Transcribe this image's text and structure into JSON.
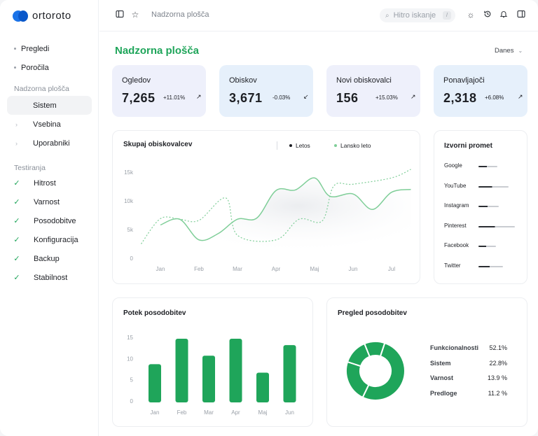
{
  "app": {
    "logo_text": "ortoroto"
  },
  "sidebar": {
    "top_items": [
      {
        "label": "Pregledi"
      },
      {
        "label": "Poročila"
      }
    ],
    "section1_title": "Nadzorna plošča",
    "section1_items": [
      {
        "label": "Sistem",
        "active": true
      },
      {
        "label": "Vsebina"
      },
      {
        "label": "Uporabniki"
      }
    ],
    "section2_title": "Testiranja",
    "section2_items": [
      {
        "label": "Hitrost"
      },
      {
        "label": "Varnost"
      },
      {
        "label": "Posodobitve"
      },
      {
        "label": "Konfiguracija"
      },
      {
        "label": "Backup"
      },
      {
        "label": "Stabilnost"
      }
    ]
  },
  "topbar": {
    "breadcrumb": "Nadzorna plošča",
    "search_placeholder": "Hitro iskanje",
    "search_shortcut": "/"
  },
  "main": {
    "title": "Nadzorna plošča",
    "period": "Danes"
  },
  "stats": [
    {
      "label": "Ogledov",
      "value": "7,265",
      "delta": "+11.01%",
      "bg": "#eef0fb"
    },
    {
      "label": "Obiskov",
      "value": "3,671",
      "delta": "-0.03%",
      "bg": "#e6f0fb"
    },
    {
      "label": "Novi obiskovalci",
      "value": "156",
      "delta": "+15.03%",
      "bg": "#eef0fb"
    },
    {
      "label": "Ponavljajoči",
      "value": "2,318",
      "delta": "+6.08%",
      "bg": "#e6f0fb"
    }
  ],
  "visitors_card": {
    "title": "Skupaj obiskovalcev",
    "legend": [
      "Letos",
      "Lansko leto"
    ]
  },
  "traffic_card": {
    "title": "Izvorni promet",
    "sources": [
      {
        "label": "Google",
        "level": 0.35
      },
      {
        "label": "YouTube",
        "level": 0.75
      },
      {
        "label": "Instagram",
        "level": 0.4
      },
      {
        "label": "Pinterest",
        "level": 1.0
      },
      {
        "label": "Facebook",
        "level": 0.3
      },
      {
        "label": "Twitter",
        "level": 0.55
      }
    ]
  },
  "updates_card": {
    "title": "Potek posodobitev"
  },
  "overview_card": {
    "title": "Pregled posodobitev",
    "rows": [
      {
        "label": "Funkcionalnosti",
        "value": "52.1%"
      },
      {
        "label": "Sistem",
        "value": "22.8%"
      },
      {
        "label": "Varnost",
        "value": "13.9 %"
      },
      {
        "label": "Predloge",
        "value": "11.2 %"
      }
    ]
  },
  "colors": {
    "accent": "#1fa55a",
    "line_green": "#7fce98",
    "muted": "#9aa0a8"
  },
  "chart_data": [
    {
      "type": "line",
      "title": "Skupaj obiskovalcev",
      "x": [
        "Jan",
        "Feb",
        "Mar",
        "Apr",
        "Maj",
        "Jun",
        "Jul"
      ],
      "y_ticks": [
        "0",
        "5k",
        "10k",
        "15k"
      ],
      "ylim": [
        0,
        16000
      ],
      "series": [
        {
          "name": "Letos",
          "x": [
            0,
            0.5,
            1,
            1.5,
            2,
            2.5,
            3,
            3.5,
            4,
            4.4,
            5,
            5.5,
            6,
            6.5
          ],
          "values": [
            5800,
            6800,
            3200,
            4300,
            6800,
            7000,
            11800,
            11900,
            14000,
            10800,
            11200,
            8500,
            11500,
            12000
          ]
        },
        {
          "name": "Lansko leto",
          "x": [
            -0.5,
            0,
            0.5,
            1,
            1.7,
            2,
            3,
            3.6,
            4.2,
            4.5,
            5,
            6,
            6.5
          ],
          "values": [
            2500,
            6900,
            6800,
            6600,
            10500,
            4000,
            3200,
            6800,
            6500,
            12600,
            12900,
            14000,
            15500
          ]
        }
      ]
    },
    {
      "type": "bar",
      "title": "Potek posodobitev",
      "categories": [
        "Jan",
        "Feb",
        "Mar",
        "Apr",
        "Maj",
        "Jun"
      ],
      "values": [
        9,
        15,
        11,
        15,
        7,
        13.5
      ],
      "y_ticks": [
        "0",
        "5",
        "10",
        "15"
      ],
      "ylim": [
        0,
        15
      ]
    },
    {
      "type": "pie",
      "title": "Pregled posodobitev",
      "categories": [
        "Funkcionalnosti",
        "Sistem",
        "Varnost",
        "Predloge"
      ],
      "values": [
        52.1,
        22.8,
        13.9,
        11.2
      ]
    }
  ]
}
